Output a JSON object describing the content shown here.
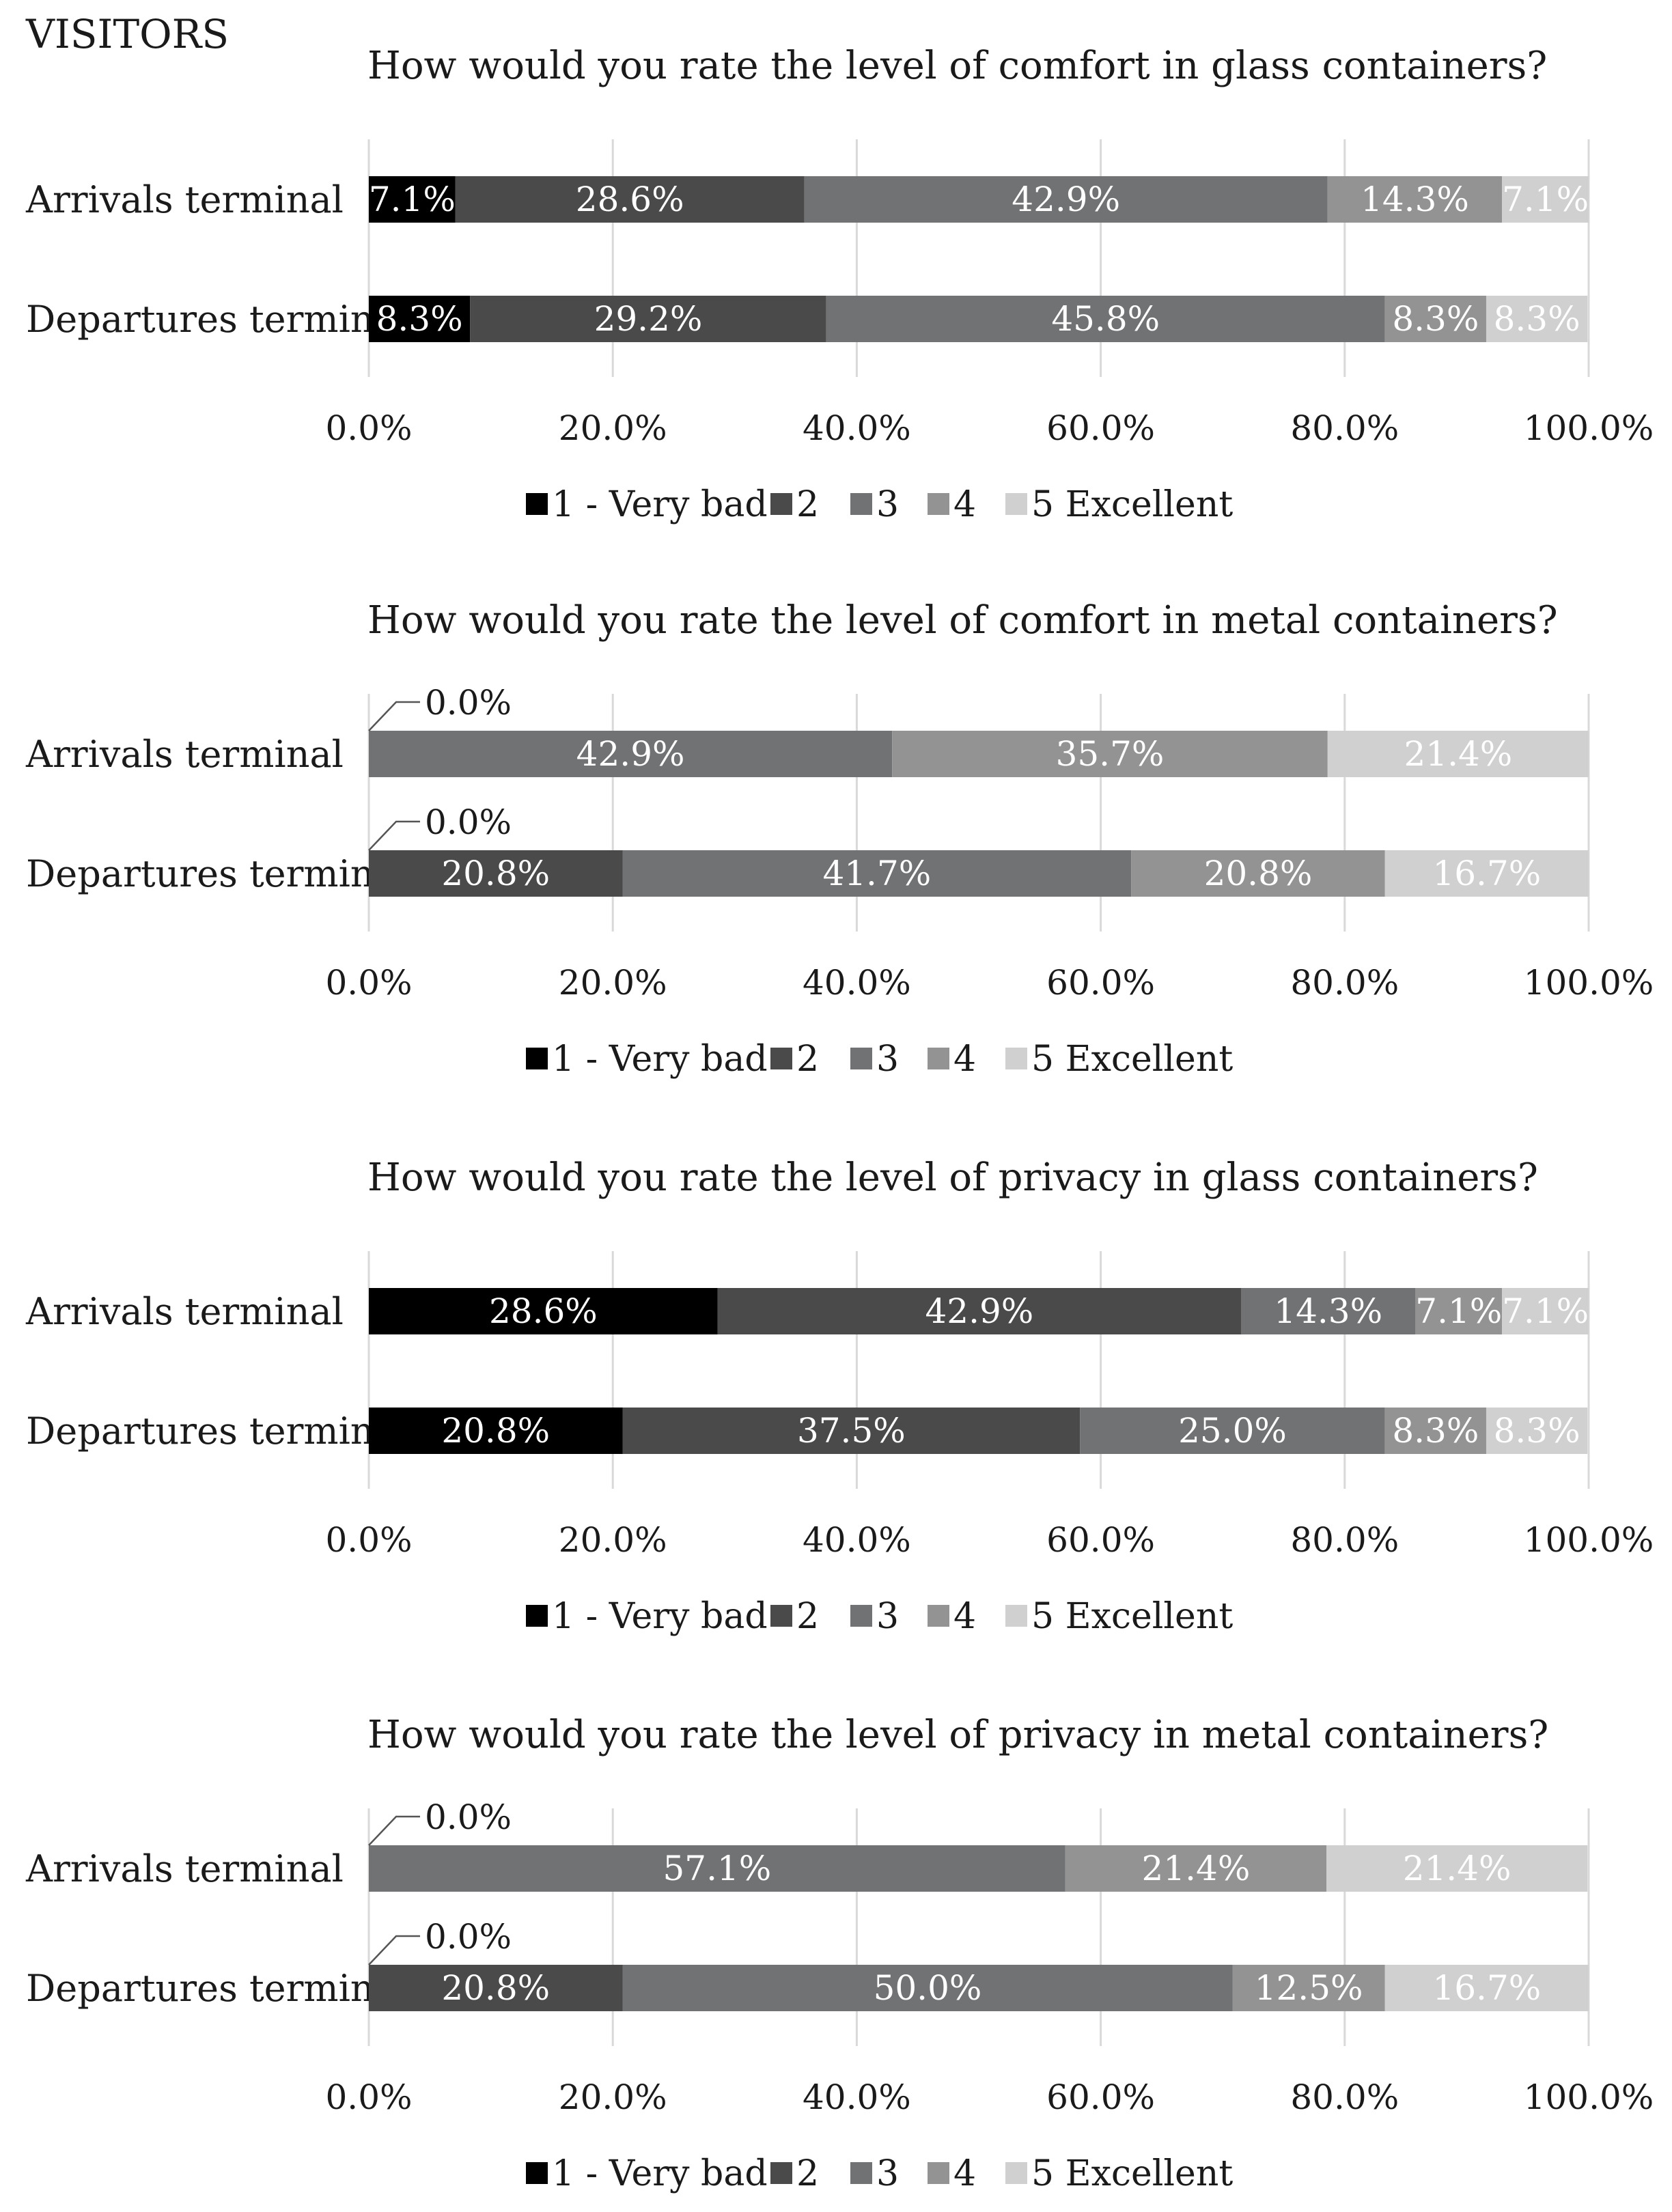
{
  "corner_label": "VISITORS",
  "rating_colors": [
    "#000000",
    "#4a4a4a",
    "#707274",
    "#939393",
    "#d0d0d0"
  ],
  "chart_data": [
    {
      "type": "bar",
      "orientation": "horizontal",
      "stacked": true,
      "title": "How would you rate the level of comfort in glass containers?",
      "categories": [
        "Arrivals terminal",
        "Departures terminal"
      ],
      "series": [
        {
          "name": "1 - Very bad",
          "values": [
            7.1,
            8.3
          ],
          "labels": [
            "7.1%",
            "8.3%"
          ]
        },
        {
          "name": "2",
          "values": [
            28.6,
            29.2
          ],
          "labels": [
            "28.6%",
            "29.2%"
          ]
        },
        {
          "name": "3",
          "values": [
            42.9,
            45.8
          ],
          "labels": [
            "42.9%",
            "45.8%"
          ]
        },
        {
          "name": "4",
          "values": [
            14.3,
            8.3
          ],
          "labels": [
            "14.3%",
            "8.3%"
          ]
        },
        {
          "name": "5 Excellent",
          "values": [
            7.1,
            8.3
          ],
          "labels": [
            "7.1%",
            "8.3%"
          ]
        }
      ],
      "zero_callouts": [
        "",
        ""
      ],
      "xlim": [
        0,
        100
      ],
      "xticks": [
        "0.0%",
        "20.0%",
        "40.0%",
        "60.0%",
        "80.0%",
        "100.0%"
      ],
      "legend": "bottom",
      "grid": true
    },
    {
      "type": "bar",
      "orientation": "horizontal",
      "stacked": true,
      "title": "How would you rate the level of comfort in metal containers?",
      "categories": [
        "Arrivals terminal",
        "Departures terminal"
      ],
      "series": [
        {
          "name": "1 - Very bad",
          "values": [
            0,
            0
          ],
          "labels": [
            "",
            ""
          ]
        },
        {
          "name": "2",
          "values": [
            0,
            20.8
          ],
          "labels": [
            "",
            "20.8%"
          ]
        },
        {
          "name": "3",
          "values": [
            42.9,
            41.7
          ],
          "labels": [
            "42.9%",
            "41.7%"
          ]
        },
        {
          "name": "4",
          "values": [
            35.7,
            20.8
          ],
          "labels": [
            "35.7%",
            "20.8%"
          ]
        },
        {
          "name": "5 Excellent",
          "values": [
            21.4,
            16.7
          ],
          "labels": [
            "21.4%",
            "16.7%"
          ]
        }
      ],
      "zero_callouts": [
        "0.0%",
        "0.0%"
      ],
      "xlim": [
        0,
        100
      ],
      "xticks": [
        "0.0%",
        "20.0%",
        "40.0%",
        "60.0%",
        "80.0%",
        "100.0%"
      ],
      "legend": "bottom",
      "grid": true
    },
    {
      "type": "bar",
      "orientation": "horizontal",
      "stacked": true,
      "title": "How would you rate the level of privacy in glass containers?",
      "categories": [
        "Arrivals terminal",
        "Departures terminal"
      ],
      "series": [
        {
          "name": "1 - Very bad",
          "values": [
            28.6,
            20.8
          ],
          "labels": [
            "28.6%",
            "20.8%"
          ]
        },
        {
          "name": "2",
          "values": [
            42.9,
            37.5
          ],
          "labels": [
            "42.9%",
            "37.5%"
          ]
        },
        {
          "name": "3",
          "values": [
            14.3,
            25.0
          ],
          "labels": [
            "14.3%",
            "25.0%"
          ]
        },
        {
          "name": "4",
          "values": [
            7.1,
            8.3
          ],
          "labels": [
            "7.1%",
            "8.3%"
          ]
        },
        {
          "name": "5 Excellent",
          "values": [
            7.1,
            8.3
          ],
          "labels": [
            "7.1%",
            "8.3%"
          ]
        }
      ],
      "zero_callouts": [
        "",
        ""
      ],
      "xlim": [
        0,
        100
      ],
      "xticks": [
        "0.0%",
        "20.0%",
        "40.0%",
        "60.0%",
        "80.0%",
        "100.0%"
      ],
      "legend": "bottom",
      "grid": true
    },
    {
      "type": "bar",
      "orientation": "horizontal",
      "stacked": true,
      "title": "How would you rate the level of privacy in metal containers?",
      "categories": [
        "Arrivals terminal",
        "Departures terminal"
      ],
      "series": [
        {
          "name": "1 - Very bad",
          "values": [
            0,
            0
          ],
          "labels": [
            "",
            ""
          ]
        },
        {
          "name": "2",
          "values": [
            0,
            20.8
          ],
          "labels": [
            "",
            "20.8%"
          ]
        },
        {
          "name": "3",
          "values": [
            57.1,
            50.0
          ],
          "labels": [
            "57.1%",
            "50.0%"
          ]
        },
        {
          "name": "4",
          "values": [
            21.4,
            12.5
          ],
          "labels": [
            "21.4%",
            "12.5%"
          ]
        },
        {
          "name": "5 Excellent",
          "values": [
            21.4,
            16.7
          ],
          "labels": [
            "21.4%",
            "16.7%"
          ]
        }
      ],
      "zero_callouts": [
        "0.0%",
        "0.0%"
      ],
      "xlim": [
        0,
        100
      ],
      "xticks": [
        "0.0%",
        "20.0%",
        "40.0%",
        "60.0%",
        "80.0%",
        "100.0%"
      ],
      "legend": "bottom",
      "grid": true
    }
  ]
}
